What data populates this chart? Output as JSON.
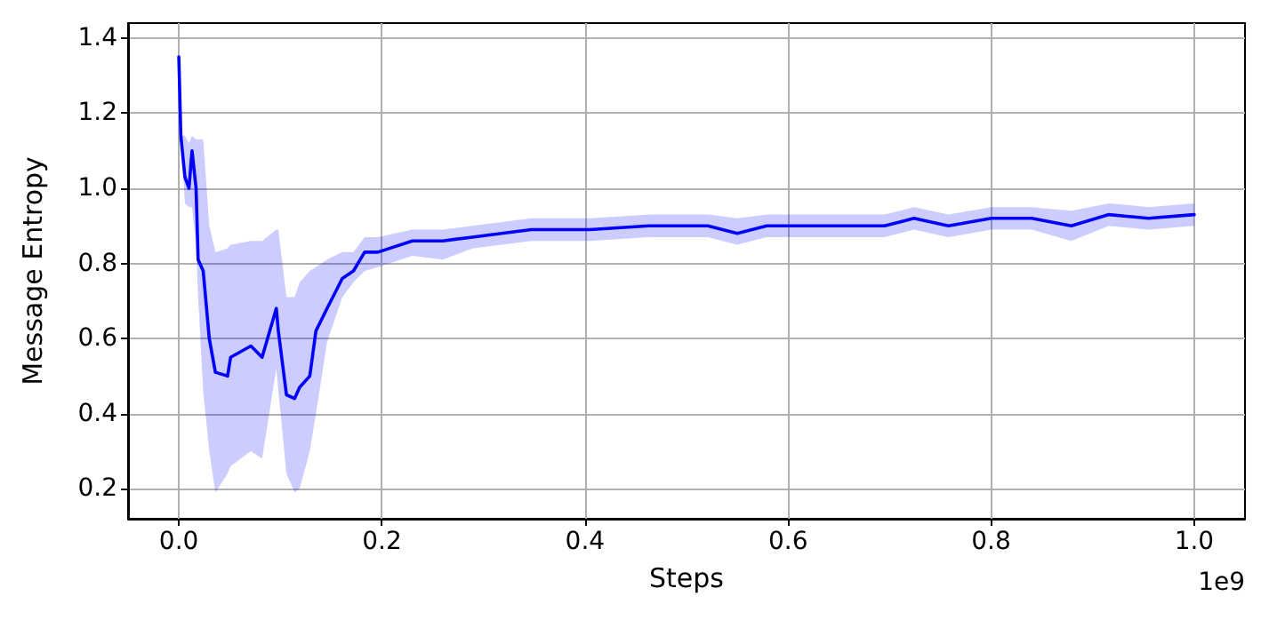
{
  "chart_data": {
    "type": "line",
    "xlabel": "Steps",
    "ylabel": "Message Entropy",
    "annotations": [
      "1e9"
    ],
    "x": [
      0,
      0.002,
      0.006,
      0.01,
      0.013,
      0.017,
      0.019,
      0.024,
      0.03,
      0.036,
      0.048,
      0.051,
      0.071,
      0.082,
      0.096,
      0.098,
      0.106,
      0.114,
      0.119,
      0.129,
      0.135,
      0.146,
      0.161,
      0.172,
      0.183,
      0.196,
      0.23,
      0.26,
      0.289,
      0.347,
      0.405,
      0.463,
      0.521,
      0.55,
      0.579,
      0.637,
      0.695,
      0.724,
      0.758,
      0.8,
      0.84,
      0.879,
      0.916,
      0.955,
      1.0
    ],
    "series": [
      {
        "color": "#0000ff",
        "values": [
          1.35,
          1.14,
          1.03,
          1.0,
          1.1,
          1.0,
          0.81,
          0.78,
          0.6,
          0.51,
          0.5,
          0.55,
          0.58,
          0.55,
          0.68,
          0.62,
          0.45,
          0.44,
          0.47,
          0.5,
          0.62,
          0.68,
          0.76,
          0.78,
          0.83,
          0.83,
          0.86,
          0.86,
          0.87,
          0.89,
          0.89,
          0.9,
          0.9,
          0.88,
          0.9,
          0.9,
          0.9,
          0.92,
          0.9,
          0.92,
          0.92,
          0.9,
          0.93,
          0.92,
          0.93
        ],
        "lower": [
          1.35,
          1.14,
          0.96,
          0.95,
          0.95,
          0.85,
          0.71,
          0.46,
          0.3,
          0.19,
          0.24,
          0.26,
          0.3,
          0.28,
          0.52,
          0.46,
          0.24,
          0.19,
          0.2,
          0.3,
          0.4,
          0.59,
          0.71,
          0.75,
          0.78,
          0.79,
          0.82,
          0.81,
          0.84,
          0.86,
          0.86,
          0.87,
          0.87,
          0.85,
          0.87,
          0.87,
          0.87,
          0.89,
          0.87,
          0.89,
          0.89,
          0.86,
          0.9,
          0.89,
          0.9
        ],
        "upper": [
          1.35,
          1.14,
          1.14,
          1.12,
          1.14,
          1.13,
          1.13,
          1.13,
          0.9,
          0.83,
          0.84,
          0.85,
          0.86,
          0.86,
          0.89,
          0.89,
          0.71,
          0.71,
          0.75,
          0.78,
          0.79,
          0.81,
          0.83,
          0.83,
          0.87,
          0.87,
          0.89,
          0.89,
          0.9,
          0.92,
          0.92,
          0.93,
          0.93,
          0.92,
          0.93,
          0.93,
          0.93,
          0.95,
          0.93,
          0.95,
          0.95,
          0.94,
          0.96,
          0.95,
          0.96
        ]
      }
    ],
    "xlim": [
      -0.05,
      1.05
    ],
    "xticks": [
      {
        "value": 0,
        "label": "0.0"
      },
      {
        "value": 0.2,
        "label": "0.2"
      },
      {
        "value": 0.4,
        "label": "0.4"
      },
      {
        "value": 0.6,
        "label": "0.6"
      },
      {
        "value": 0.8,
        "label": "0.8"
      },
      {
        "value": 1.0,
        "label": "1.0"
      }
    ],
    "ylim": [
      0.12,
      1.44
    ],
    "yticks": [
      {
        "value": 0.2,
        "label": "0.2"
      },
      {
        "value": 0.4,
        "label": "0.4"
      },
      {
        "value": 0.6,
        "label": "0.6"
      },
      {
        "value": 0.8,
        "label": "0.8"
      },
      {
        "value": 1.0,
        "label": "1.0"
      },
      {
        "value": 1.2,
        "label": "1.2"
      },
      {
        "value": 1.4,
        "label": "1.4"
      }
    ],
    "grid": true,
    "marker": "none",
    "line_style": "solid"
  }
}
